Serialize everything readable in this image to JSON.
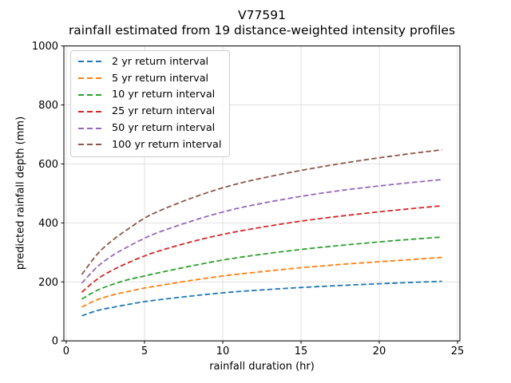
{
  "figure": {
    "background": "#ffffff",
    "grid_color": "#dedede",
    "spine_color": "#000000",
    "legend_border_color": "#cccccc"
  },
  "chart_data": {
    "type": "line",
    "title": "V77591",
    "subtitle": "rainfall estimated from 19 distance-weighted intensity profiles",
    "xlabel": "rainfall duration (hr)",
    "ylabel": "predicted rainfall depth (mm)",
    "xlim": [
      -0.15,
      25.15
    ],
    "ylim": [
      0,
      1000
    ],
    "xticks": [
      0,
      5,
      10,
      15,
      20,
      25
    ],
    "yticks": [
      0,
      200,
      400,
      600,
      800,
      1000
    ],
    "grid": true,
    "line_style": "dashed",
    "legend_position": "upper-left",
    "x": [
      1,
      2,
      3,
      4,
      5,
      6,
      8,
      10,
      12,
      15,
      18,
      21,
      24
    ],
    "series": [
      {
        "name": "2 yr return interval",
        "color": "#1f77b4",
        "values": [
          85,
          103,
          114,
          124,
          133,
          140,
          152,
          163,
          171,
          181,
          189,
          196,
          202
        ]
      },
      {
        "name": "5 yr return interval",
        "color": "#ff7f0e",
        "values": [
          115,
          140,
          156,
          168,
          179,
          188,
          205,
          220,
          232,
          248,
          261,
          272,
          283
        ]
      },
      {
        "name": "10 yr return interval",
        "color": "#2ca02c",
        "values": [
          142,
          172,
          192,
          208,
          220,
          232,
          254,
          274,
          290,
          310,
          326,
          340,
          352
        ]
      },
      {
        "name": "25 yr return interval",
        "color": "#d62728",
        "values": [
          165,
          210,
          241,
          266,
          288,
          306,
          336,
          361,
          381,
          406,
          426,
          443,
          458
        ]
      },
      {
        "name": "50 yr return interval",
        "color": "#9467bd",
        "values": [
          196,
          252,
          291,
          321,
          348,
          370,
          406,
          437,
          461,
          490,
          513,
          531,
          547
        ]
      },
      {
        "name": "100 yr return interval",
        "color": "#8c564b",
        "values": [
          225,
          295,
          343,
          381,
          416,
          442,
          484,
          519,
          546,
          578,
          605,
          628,
          648
        ]
      }
    ]
  }
}
